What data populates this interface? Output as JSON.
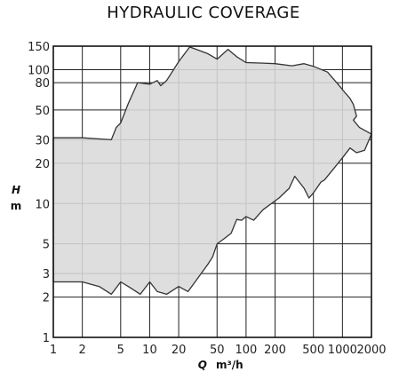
{
  "chart_data": {
    "type": "area",
    "title": "HYDRAULIC COVERAGE",
    "x_axis": {
      "symbol": "Q",
      "unit": "m³/h",
      "scale": "log",
      "range": [
        1,
        2000
      ],
      "ticks": [
        1,
        2,
        5,
        10,
        20,
        50,
        100,
        200,
        500,
        1000,
        2000
      ],
      "tick_labels": [
        "1",
        "2",
        "5",
        "10",
        "20",
        "50",
        "100",
        "200",
        "500",
        "1000",
        "2000"
      ]
    },
    "y_axis": {
      "symbol": "H",
      "unit": "m",
      "scale": "log",
      "range": [
        1,
        150
      ],
      "ticks": [
        1,
        2,
        3,
        5,
        10,
        20,
        30,
        50,
        80,
        100,
        150
      ],
      "tick_labels": [
        "1",
        "2",
        "3",
        "5",
        "10",
        "20",
        "30",
        "50",
        "80",
        "100",
        "150"
      ]
    },
    "grid": true,
    "fill_color": "#d9d9d9",
    "outline_color": "#333333",
    "region": [
      [
        1,
        31
      ],
      [
        2,
        31
      ],
      [
        4,
        30
      ],
      [
        4.5,
        37
      ],
      [
        5,
        40
      ],
      [
        6,
        56
      ],
      [
        7.5,
        80
      ],
      [
        10,
        78
      ],
      [
        12,
        83
      ],
      [
        13,
        76
      ],
      [
        15,
        83
      ],
      [
        20,
        115
      ],
      [
        26,
        148
      ],
      [
        40,
        132
      ],
      [
        50,
        120
      ],
      [
        65,
        142
      ],
      [
        80,
        125
      ],
      [
        100,
        113
      ],
      [
        150,
        112
      ],
      [
        200,
        111
      ],
      [
        300,
        107
      ],
      [
        400,
        111
      ],
      [
        500,
        106
      ],
      [
        700,
        96
      ],
      [
        800,
        86
      ],
      [
        900,
        78
      ],
      [
        1000,
        71
      ],
      [
        1200,
        61
      ],
      [
        1300,
        55
      ],
      [
        1400,
        45
      ],
      [
        1300,
        42
      ],
      [
        1500,
        37
      ],
      [
        2000,
        33
      ],
      [
        1700,
        25
      ],
      [
        1400,
        24
      ],
      [
        1200,
        26
      ],
      [
        1000,
        22
      ],
      [
        800,
        18
      ],
      [
        650,
        15
      ],
      [
        600,
        14.5
      ],
      [
        500,
        12
      ],
      [
        450,
        11
      ],
      [
        400,
        13
      ],
      [
        320,
        16
      ],
      [
        280,
        13
      ],
      [
        220,
        11
      ],
      [
        150,
        9
      ],
      [
        120,
        7.5
      ],
      [
        100,
        8
      ],
      [
        90,
        7.5
      ],
      [
        80,
        7.6
      ],
      [
        70,
        6
      ],
      [
        60,
        5.5
      ],
      [
        50,
        5
      ],
      [
        45,
        4
      ],
      [
        40,
        3.5
      ],
      [
        25,
        2.2
      ],
      [
        20,
        2.4
      ],
      [
        15,
        2.1
      ],
      [
        12,
        2.2
      ],
      [
        10,
        2.6
      ],
      [
        8,
        2.1
      ],
      [
        6,
        2.4
      ],
      [
        5,
        2.6
      ],
      [
        4,
        2.1
      ],
      [
        3,
        2.4
      ],
      [
        2,
        2.6
      ],
      [
        1,
        2.6
      ]
    ]
  }
}
